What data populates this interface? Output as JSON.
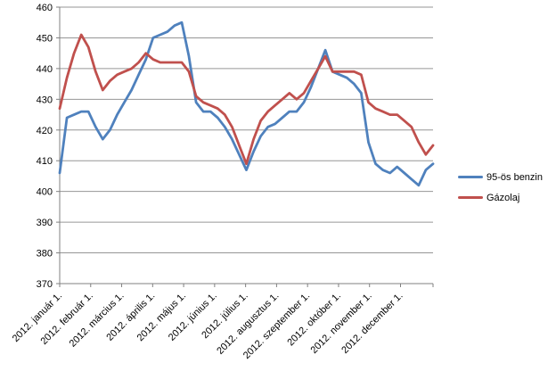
{
  "chart_data": {
    "type": "line",
    "title": "",
    "x_axis": {
      "tick_labels": [
        "2012. január 1.",
        "2012. február 1.",
        "2012. március 1.",
        "2012. április 1.",
        "2012. május 1.",
        "2012. június 1.",
        "2012. július 1.",
        "2012. augusztus 1.",
        "2012. szeptember 1.",
        "2012. október 1.",
        "2012. november 1.",
        "2012. december 1."
      ],
      "label_rotation_deg": 45,
      "point_interval": "weekly"
    },
    "y_axis": {
      "min": 370,
      "max": 460,
      "tick_step": 10,
      "tick_labels": [
        "370",
        "380",
        "390",
        "400",
        "410",
        "420",
        "430",
        "440",
        "450",
        "460"
      ]
    },
    "series": [
      {
        "name": "95-ös benzin",
        "color": "#4F81BD",
        "values": [
          406,
          424,
          425,
          426,
          426,
          421,
          417,
          420,
          425,
          429,
          433,
          438,
          443,
          450,
          451,
          452,
          454,
          455,
          444,
          429,
          426,
          426,
          424,
          421,
          417,
          412,
          407,
          413,
          418,
          421,
          422,
          424,
          426,
          426,
          429,
          434,
          440,
          446,
          439,
          438,
          437,
          435,
          432,
          416,
          409,
          407,
          406,
          408,
          406,
          404,
          402,
          407,
          409
        ]
      },
      {
        "name": "Gázolaj",
        "color": "#C0504D",
        "values": [
          427,
          437,
          445,
          451,
          447,
          439,
          433,
          436,
          438,
          439,
          440,
          442,
          445,
          443,
          442,
          442,
          442,
          442,
          439,
          431,
          429,
          428,
          427,
          425,
          421,
          415,
          409,
          417,
          423,
          426,
          428,
          430,
          432,
          430,
          432,
          436,
          440,
          444,
          439,
          439,
          439,
          439,
          438,
          429,
          427,
          426,
          425,
          425,
          423,
          421,
          416,
          412,
          415
        ]
      }
    ],
    "legend_position": "right",
    "grid": true,
    "colors": {
      "gridline": "#969696",
      "axis": "#808080",
      "label_text": "#000000",
      "background": "#FFFFFF"
    }
  }
}
